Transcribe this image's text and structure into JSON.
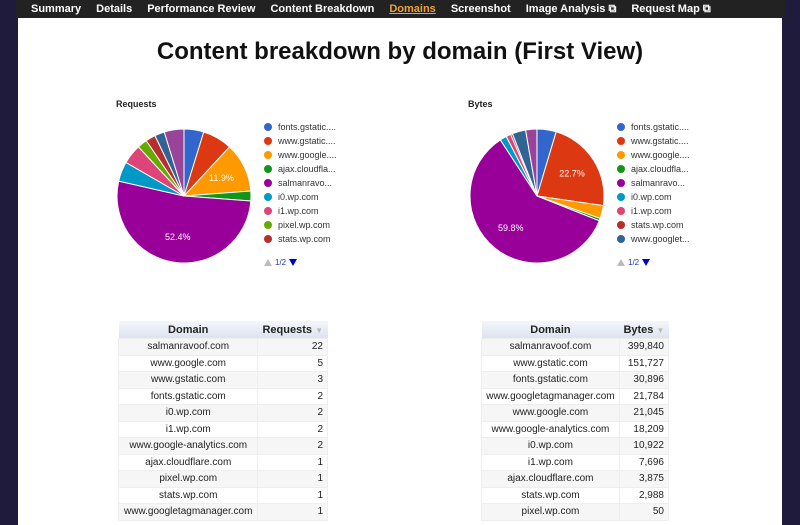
{
  "nav": [
    "Summary",
    "Details",
    "Performance Review",
    "Content Breakdown",
    "Domains",
    "Screenshot",
    "Image Analysis ⧉",
    "Request Map ⧉"
  ],
  "active_nav": 4,
  "title": "Content breakdown by domain (First View)",
  "chart_data": [
    {
      "type": "pie",
      "title": "Requests",
      "labels": [
        "fonts.gstatic.com",
        "www.gstatic.com",
        "www.google.com",
        "ajax.cloudflare.com",
        "salmanravoof.com",
        "i0.wp.com",
        "i1.wp.com",
        "pixel.wp.com",
        "stats.wp.com",
        "www.googletagmanager.com",
        "www.google-analytics.com"
      ],
      "values": [
        2,
        3,
        5,
        1,
        22,
        2,
        2,
        1,
        1,
        1,
        2
      ],
      "colors": [
        "#3366cc",
        "#dc3912",
        "#ff9900",
        "#109618",
        "#990099",
        "#0099c6",
        "#dd4477",
        "#66aa00",
        "#b82e2e",
        "#316395",
        "#994499"
      ],
      "legend_labels": [
        "fonts.gstatic....",
        "www.gstatic....",
        "www.google....",
        "ajax.cloudfla...",
        "salmanravo...",
        "i0.wp.com",
        "i1.wp.com",
        "pixel.wp.com",
        "stats.wp.com"
      ],
      "legend_colors": [
        "#3366cc",
        "#dc3912",
        "#ff9900",
        "#109618",
        "#990099",
        "#0099c6",
        "#dd4477",
        "#66aa00",
        "#b82e2e"
      ],
      "slice_labels": {
        "2": "11.9%",
        "4": "52.4%"
      },
      "pager": "1/2"
    },
    {
      "type": "pie",
      "title": "Bytes",
      "labels": [
        "fonts.gstatic.com",
        "www.gstatic.com",
        "www.google.com",
        "ajax.cloudflare.com",
        "salmanravoof.com",
        "i0.wp.com",
        "i1.wp.com",
        "stats.wp.com",
        "www.googletagmanager.com",
        "www.google-analytics.com",
        "pixel.wp.com"
      ],
      "values": [
        30896,
        151727,
        21045,
        3875,
        399840,
        10922,
        7696,
        2988,
        21784,
        18209,
        50
      ],
      "colors": [
        "#3366cc",
        "#dc3912",
        "#ff9900",
        "#109618",
        "#990099",
        "#0099c6",
        "#dd4477",
        "#b82e2e",
        "#316395",
        "#994499",
        "#66aa00"
      ],
      "legend_labels": [
        "fonts.gstatic....",
        "www.gstatic....",
        "www.google....",
        "ajax.cloudfla...",
        "salmanravo...",
        "i0.wp.com",
        "i1.wp.com",
        "stats.wp.com",
        "www.googlet..."
      ],
      "legend_colors": [
        "#3366cc",
        "#dc3912",
        "#ff9900",
        "#109618",
        "#990099",
        "#0099c6",
        "#dd4477",
        "#b82e2e",
        "#316395"
      ],
      "slice_labels": {
        "1": "22.7%",
        "4": "59.8%"
      },
      "pager": "1/2"
    }
  ],
  "requests_table": {
    "headers": [
      "Domain",
      "Requests"
    ],
    "sort_icon": "▼",
    "rows": [
      [
        "salmanravoof.com",
        "22"
      ],
      [
        "www.google.com",
        "5"
      ],
      [
        "www.gstatic.com",
        "3"
      ],
      [
        "fonts.gstatic.com",
        "2"
      ],
      [
        "i0.wp.com",
        "2"
      ],
      [
        "i1.wp.com",
        "2"
      ],
      [
        "www.google-analytics.com",
        "2"
      ],
      [
        "ajax.cloudflare.com",
        "1"
      ],
      [
        "pixel.wp.com",
        "1"
      ],
      [
        "stats.wp.com",
        "1"
      ],
      [
        "www.googletagmanager.com",
        "1"
      ]
    ]
  },
  "bytes_table": {
    "headers": [
      "Domain",
      "Bytes"
    ],
    "sort_icon": "▼",
    "rows": [
      [
        "salmanravoof.com",
        "399,840"
      ],
      [
        "www.gstatic.com",
        "151,727"
      ],
      [
        "fonts.gstatic.com",
        "30,896"
      ],
      [
        "www.googletagmanager.com",
        "21,784"
      ],
      [
        "www.google.com",
        "21,045"
      ],
      [
        "www.google-analytics.com",
        "18,209"
      ],
      [
        "i0.wp.com",
        "10,922"
      ],
      [
        "i1.wp.com",
        "7,696"
      ],
      [
        "ajax.cloudflare.com",
        "3,875"
      ],
      [
        "stats.wp.com",
        "2,988"
      ],
      [
        "pixel.wp.com",
        "50"
      ]
    ]
  }
}
